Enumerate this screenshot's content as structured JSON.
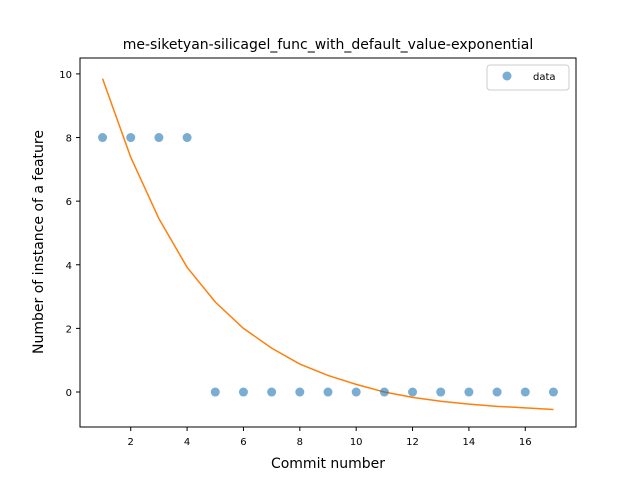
{
  "chart_data": {
    "type": "scatter",
    "title": "me-siketyan-silicagel_func_with_default_value-exponential",
    "xlabel": "Commit number",
    "ylabel": "Number of instance of a feature",
    "xlim": [
      0.2,
      17.8
    ],
    "ylim": [
      -1.1,
      10.5
    ],
    "x_ticks": [
      2,
      4,
      6,
      8,
      10,
      12,
      14,
      16
    ],
    "y_ticks": [
      0,
      2,
      4,
      6,
      8,
      10
    ],
    "grid": false,
    "legend_position": "top-right",
    "series": [
      {
        "name": "data",
        "kind": "scatter",
        "color": "#1f77b4",
        "x": [
          1,
          2,
          3,
          4,
          5,
          6,
          7,
          8,
          9,
          10,
          11,
          12,
          13,
          14,
          15,
          16,
          17
        ],
        "y": [
          8,
          8,
          8,
          8,
          0,
          0,
          0,
          0,
          0,
          0,
          0,
          0,
          0,
          0,
          0,
          0,
          0
        ]
      },
      {
        "kind": "line",
        "color": "#ff7f0e",
        "x": [
          1,
          2,
          3,
          4,
          5,
          6,
          7,
          8,
          9,
          10,
          11,
          12,
          13,
          14,
          15,
          16,
          17
        ],
        "y": [
          9.85,
          7.38,
          5.45,
          3.92,
          2.83,
          2.0,
          1.38,
          0.88,
          0.52,
          0.24,
          0.0,
          -0.17,
          -0.29,
          -0.38,
          -0.45,
          -0.5,
          -0.55
        ]
      }
    ]
  }
}
